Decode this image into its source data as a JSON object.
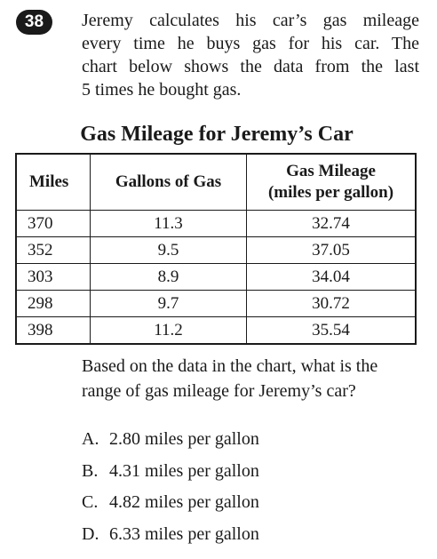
{
  "question": {
    "number": "38",
    "stem_lines": [
      "Jeremy calculates his car’s gas mileage",
      "every time he buys gas for his car. The",
      "chart below shows the data from the last",
      "5 times he bought gas."
    ]
  },
  "table": {
    "title": "Gas Mileage for Jeremy’s Car",
    "headers": {
      "miles": "Miles",
      "gallons": "Gallons of Gas",
      "mileage_line1": "Gas Mileage",
      "mileage_line2": "(miles per gallon)"
    },
    "rows": [
      {
        "miles": "370",
        "gallons": "11.3",
        "mileage": "32.74"
      },
      {
        "miles": "352",
        "gallons": "9.5",
        "mileage": "37.05"
      },
      {
        "miles": "303",
        "gallons": "8.9",
        "mileage": "34.04"
      },
      {
        "miles": "298",
        "gallons": "9.7",
        "mileage": "30.72"
      },
      {
        "miles": "398",
        "gallons": "11.2",
        "mileage": "35.54"
      }
    ]
  },
  "prompt_lines": [
    "Based on the data in the chart, what is the",
    "range of gas mileage for Jeremy’s car?"
  ],
  "choices": [
    {
      "letter": "A.",
      "text": "2.80 miles per gallon"
    },
    {
      "letter": "B.",
      "text": "4.31 miles per gallon"
    },
    {
      "letter": "C.",
      "text": "4.82 miles per gallon"
    },
    {
      "letter": "D.",
      "text": "6.33 miles per gallon"
    }
  ]
}
